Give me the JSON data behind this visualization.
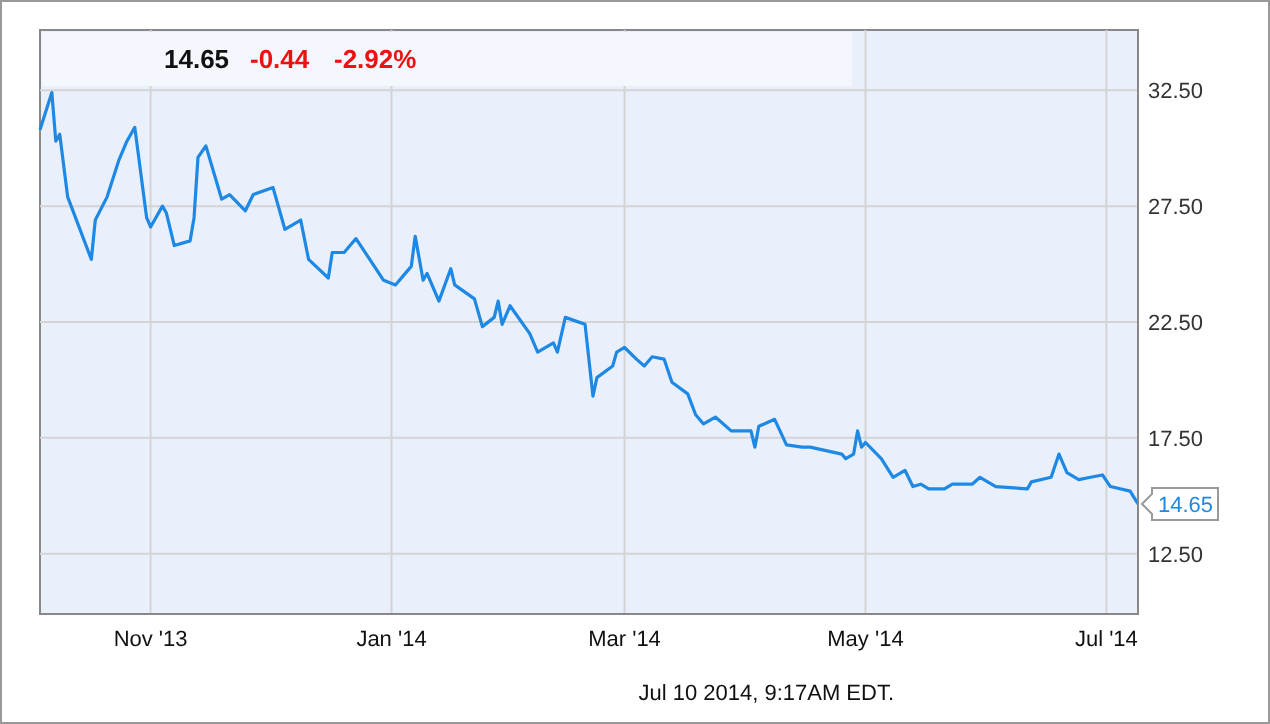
{
  "chart_data": {
    "type": "line",
    "title": "14.65",
    "subtitle": "-0.44  -2.92%",
    "x": [
      "2013-10-04",
      "2013-10-07",
      "2013-10-08",
      "2013-10-09",
      "2013-10-11",
      "2013-10-17",
      "2013-10-18",
      "2013-10-21",
      "2013-10-24",
      "2013-10-26",
      "2013-10-28",
      "2013-10-31",
      "2013-11-01",
      "2013-11-04",
      "2013-11-05",
      "2013-11-07",
      "2013-11-11",
      "2013-11-12",
      "2013-11-13",
      "2013-11-15",
      "2013-11-19",
      "2013-11-21",
      "2013-11-25",
      "2013-11-27",
      "2013-12-02",
      "2013-12-05",
      "2013-12-09",
      "2013-12-11",
      "2013-12-16",
      "2013-12-17",
      "2013-12-20",
      "2013-12-23",
      "2013-12-30",
      "2014-01-02",
      "2014-01-04",
      "2014-01-06",
      "2014-01-07",
      "2014-01-09",
      "2014-01-10",
      "2014-01-13",
      "2014-01-16",
      "2014-01-17",
      "2014-01-22",
      "2014-01-24",
      "2014-01-27",
      "2014-01-28",
      "2014-01-29",
      "2014-01-31",
      "2014-02-05",
      "2014-02-07",
      "2014-02-11",
      "2014-02-12",
      "2014-02-14",
      "2014-02-19",
      "2014-02-21",
      "2014-02-22",
      "2014-02-26",
      "2014-02-27",
      "2014-03-01",
      "2014-03-04",
      "2014-03-06",
      "2014-03-08",
      "2014-03-11",
      "2014-03-13",
      "2014-03-17",
      "2014-03-19",
      "2014-03-21",
      "2014-03-24",
      "2014-03-28",
      "2014-04-02",
      "2014-04-03",
      "2014-04-04",
      "2014-04-08",
      "2014-04-11",
      "2014-04-15",
      "2014-04-17",
      "2014-04-25",
      "2014-04-26",
      "2014-04-28",
      "2014-04-29",
      "2014-04-30",
      "2014-05-01",
      "2014-05-05",
      "2014-05-08",
      "2014-05-11",
      "2014-05-13",
      "2014-05-15",
      "2014-05-17",
      "2014-05-21",
      "2014-05-23",
      "2014-05-28",
      "2014-05-30",
      "2014-06-03",
      "2014-06-11",
      "2014-06-12",
      "2014-06-17",
      "2014-06-19",
      "2014-06-21",
      "2014-06-24",
      "2014-06-27",
      "2014-06-30",
      "2014-07-02",
      "2014-07-07",
      "2014-07-09"
    ],
    "series": [
      {
        "color": "#1e88e5",
        "values": [
          30.8,
          32.4,
          30.3,
          30.6,
          27.9,
          25.2,
          26.9,
          27.9,
          29.5,
          30.3,
          30.9,
          27.0,
          26.6,
          27.5,
          27.2,
          25.8,
          26.0,
          27.0,
          29.6,
          30.1,
          27.8,
          28.0,
          27.3,
          28.0,
          28.3,
          26.5,
          26.9,
          25.2,
          24.4,
          25.5,
          25.5,
          26.1,
          24.3,
          24.1,
          24.5,
          24.9,
          26.2,
          24.3,
          24.6,
          23.4,
          24.8,
          24.1,
          23.5,
          22.3,
          22.7,
          23.4,
          22.4,
          23.2,
          22.0,
          21.2,
          21.6,
          21.2,
          22.7,
          22.4,
          19.3,
          20.1,
          20.6,
          21.2,
          21.4,
          20.9,
          20.6,
          21.0,
          20.9,
          19.9,
          19.4,
          18.5,
          18.1,
          18.4,
          17.8,
          17.8,
          17.1,
          18.0,
          18.3,
          17.2,
          17.1,
          17.1,
          16.8,
          16.6,
          16.8,
          17.8,
          17.1,
          17.3,
          16.6,
          15.8,
          16.1,
          15.4,
          15.5,
          15.3,
          15.3,
          15.5,
          15.5,
          15.8,
          15.4,
          15.3,
          15.6,
          15.8,
          16.8,
          16.0,
          15.7,
          15.8,
          15.9,
          15.4,
          15.2,
          14.65
        ]
      }
    ],
    "xlim": [
      "2013-10-04",
      "2014-07-09"
    ],
    "xticks": [
      {
        "value": "2013-11-01",
        "label": "Nov '13"
      },
      {
        "value": "2014-01-01",
        "label": "Jan '14"
      },
      {
        "value": "2014-03-01",
        "label": "Mar '14"
      },
      {
        "value": "2014-05-01",
        "label": "May '14"
      },
      {
        "value": "2014-07-01",
        "label": "Jul '14"
      }
    ],
    "ylim": [
      9.9,
      35.1
    ],
    "yticks": [
      {
        "value": 12.5,
        "label": "12.50"
      },
      {
        "value": 17.5,
        "label": "17.50"
      },
      {
        "value": 22.5,
        "label": "22.50"
      },
      {
        "value": 27.5,
        "label": "27.50"
      },
      {
        "value": 32.5,
        "label": "32.50"
      }
    ],
    "grid": true,
    "marker": "none",
    "line_style": "solid",
    "annotations": [
      {
        "text": "14.65",
        "x": "2014-07-09",
        "y": 14.65
      },
      "Jul 10 2014, 9:17AM EDT."
    ]
  }
}
